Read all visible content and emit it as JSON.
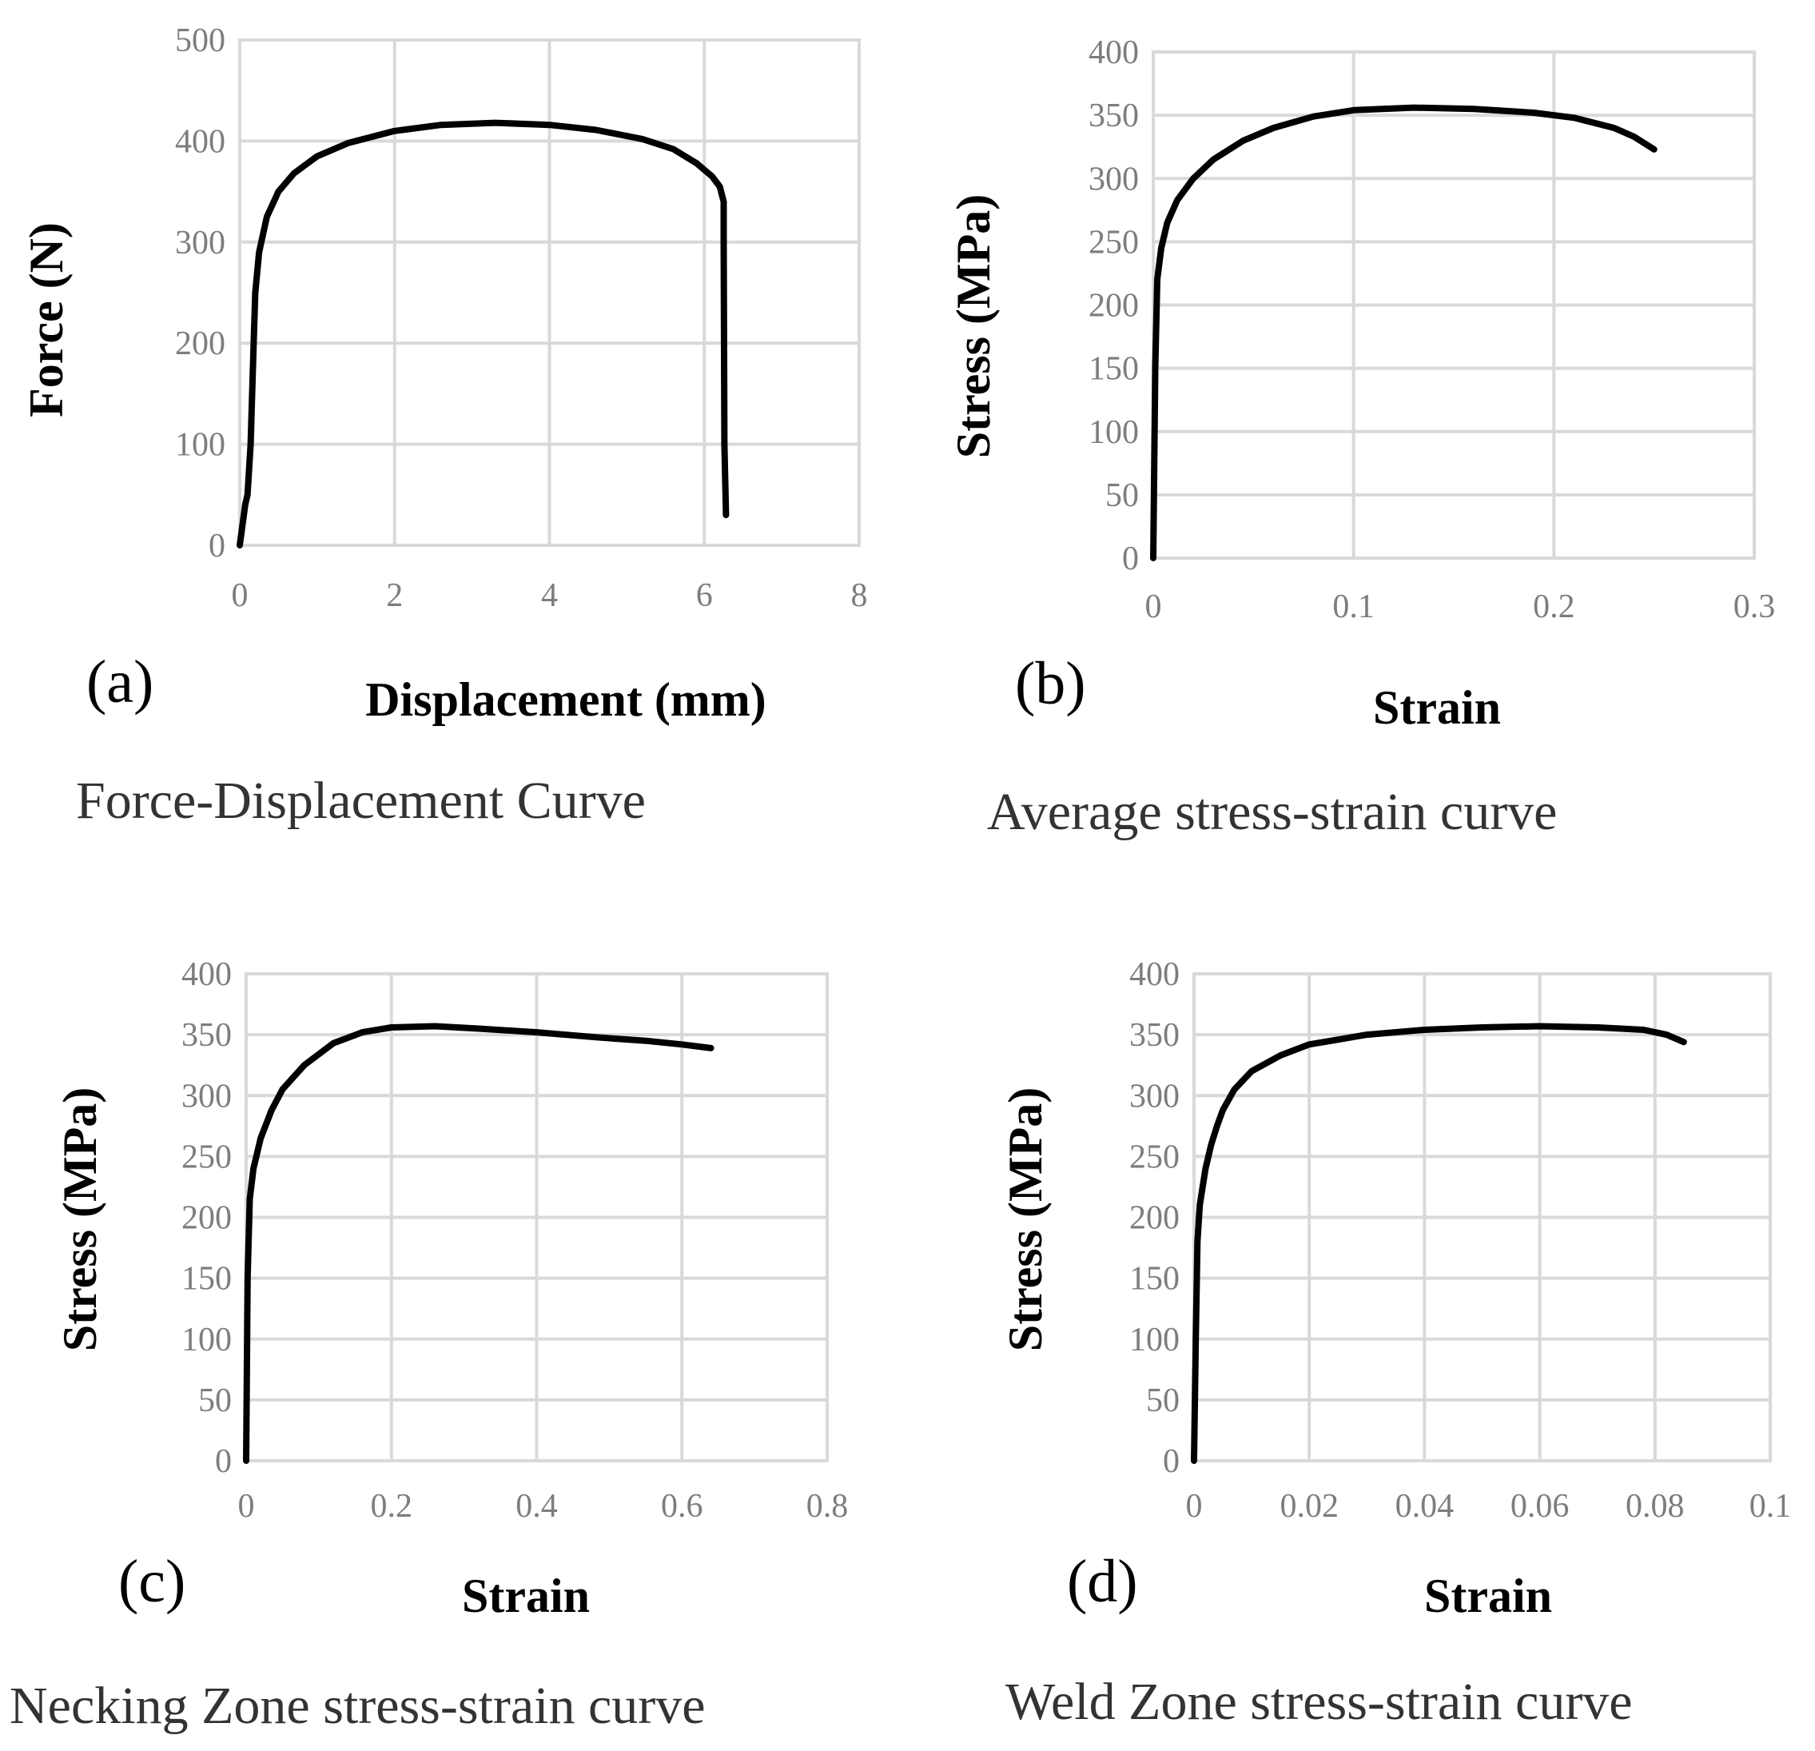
{
  "chart_data": [
    {
      "type": "line",
      "panel_label": "(a)",
      "caption": "Force-Displacement Curve",
      "title": "",
      "xlabel": "Displacement (mm)",
      "ylabel": "Force (N)",
      "xlim": [
        0,
        8
      ],
      "ylim": [
        0,
        500
      ],
      "xticks": [
        "0",
        "2",
        "4",
        "6",
        "8"
      ],
      "yticks": [
        "0",
        "100",
        "200",
        "300",
        "400",
        "500"
      ],
      "grid": true,
      "series": [
        {
          "name": "Force",
          "x": [
            0,
            0.07,
            0.1,
            0.14,
            0.18,
            0.2,
            0.25,
            0.35,
            0.5,
            0.7,
            1.0,
            1.4,
            2.0,
            2.6,
            3.3,
            4.0,
            4.6,
            5.2,
            5.6,
            5.9,
            6.1,
            6.2,
            6.25,
            6.25,
            6.26,
            6.28
          ],
          "y": [
            0,
            40,
            50,
            100,
            200,
            250,
            290,
            325,
            350,
            368,
            385,
            398,
            410,
            416,
            418,
            416,
            411,
            402,
            392,
            378,
            365,
            355,
            340,
            300,
            100,
            30
          ]
        }
      ]
    },
    {
      "type": "line",
      "panel_label": "(b)",
      "caption": "Average stress-strain curve",
      "title": "",
      "xlabel": "Strain",
      "ylabel": "Stress (MPa)",
      "xlim": [
        0,
        0.3
      ],
      "ylim": [
        0,
        400
      ],
      "xticks": [
        "0",
        "0.1",
        "0.2",
        "0.3"
      ],
      "yticks": [
        "0",
        "50",
        "100",
        "150",
        "200",
        "250",
        "300",
        "350",
        "400"
      ],
      "grid": true,
      "series": [
        {
          "name": "Average",
          "x": [
            0,
            0.001,
            0.002,
            0.004,
            0.007,
            0.012,
            0.02,
            0.03,
            0.045,
            0.06,
            0.08,
            0.1,
            0.13,
            0.16,
            0.19,
            0.21,
            0.23,
            0.24,
            0.25
          ],
          "y": [
            0,
            150,
            220,
            245,
            265,
            283,
            300,
            315,
            330,
            340,
            349,
            354,
            356,
            355,
            352,
            348,
            340,
            333,
            323
          ]
        }
      ]
    },
    {
      "type": "line",
      "panel_label": "(c)",
      "caption": "Necking Zone stress-strain curve",
      "title": "",
      "xlabel": "Strain",
      "ylabel": "Stress (MPa)",
      "xlim": [
        0,
        0.8
      ],
      "ylim": [
        0,
        400
      ],
      "xticks": [
        "0",
        "0.2",
        "0.4",
        "0.6",
        "0.8"
      ],
      "yticks": [
        "0",
        "50",
        "100",
        "150",
        "200",
        "250",
        "300",
        "350",
        "400"
      ],
      "grid": true,
      "series": [
        {
          "name": "Necking Zone",
          "x": [
            0,
            0.002,
            0.005,
            0.01,
            0.02,
            0.035,
            0.05,
            0.08,
            0.12,
            0.16,
            0.2,
            0.26,
            0.32,
            0.4,
            0.48,
            0.55,
            0.6,
            0.64
          ],
          "y": [
            0,
            150,
            215,
            240,
            265,
            288,
            305,
            325,
            343,
            352,
            356,
            357,
            355,
            352,
            348,
            345,
            342,
            339
          ]
        }
      ]
    },
    {
      "type": "line",
      "panel_label": "(d)",
      "caption": "Weld Zone stress-strain curve",
      "title": "",
      "xlabel": "Strain",
      "ylabel": "Stress (MPa)",
      "xlim": [
        0,
        0.1
      ],
      "ylim": [
        0,
        400
      ],
      "xticks": [
        "0",
        "0.02",
        "0.04",
        "0.06",
        "0.08",
        "0.1"
      ],
      "yticks": [
        "0",
        "50",
        "100",
        "150",
        "200",
        "250",
        "300",
        "350",
        "400"
      ],
      "grid": true,
      "series": [
        {
          "name": "Weld Zone",
          "x": [
            0,
            0.0003,
            0.0006,
            0.001,
            0.0015,
            0.002,
            0.003,
            0.004,
            0.005,
            0.007,
            0.01,
            0.015,
            0.02,
            0.03,
            0.04,
            0.05,
            0.06,
            0.07,
            0.078,
            0.082,
            0.085
          ],
          "y": [
            0,
            100,
            180,
            210,
            225,
            240,
            260,
            275,
            288,
            305,
            320,
            333,
            342,
            350,
            354,
            356,
            357,
            356,
            354,
            350,
            344
          ]
        }
      ]
    }
  ]
}
